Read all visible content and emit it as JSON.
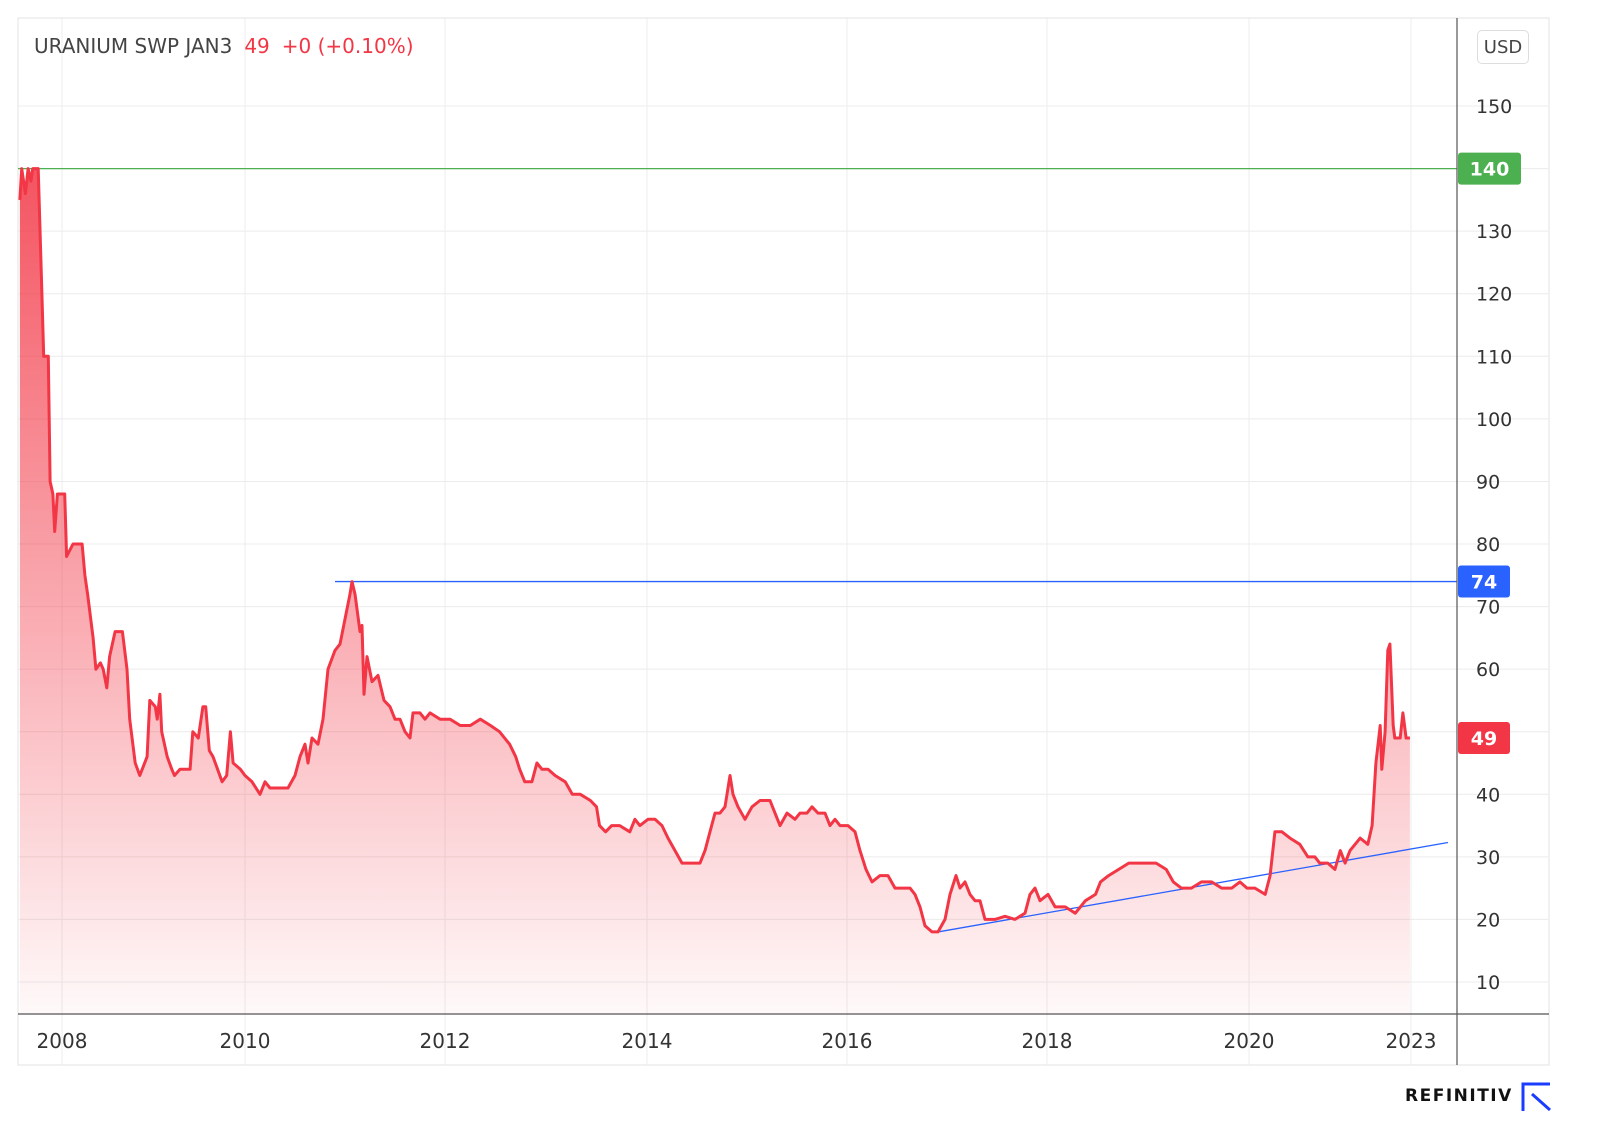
{
  "header": {
    "symbol": "URANIUM SWP JAN3",
    "last": "49",
    "change": "+0 (+0.10%)"
  },
  "currency_button": "USD",
  "brand": "REFINITIV",
  "colors": {
    "line": "#f23645",
    "green": "#4caf50",
    "blue": "#2962ff",
    "grid": "#ececec"
  },
  "chart_data": {
    "type": "area",
    "title": "URANIUM SWP JAN3",
    "ylabel": "USD",
    "ylim": [
      5,
      165
    ],
    "yticks": [
      10,
      20,
      30,
      40,
      50,
      60,
      70,
      80,
      90,
      100,
      110,
      120,
      130,
      140,
      150
    ],
    "ytick_labels": [
      "10",
      "20",
      "30",
      "40",
      "60",
      "70",
      "80",
      "90",
      "100",
      "110",
      "120",
      "130",
      "150"
    ],
    "ytick_label_values": [
      10,
      20,
      30,
      40,
      60,
      70,
      80,
      90,
      100,
      110,
      120,
      130,
      150
    ],
    "xticks": [
      2008,
      2010,
      2012,
      2014,
      2016,
      2018,
      2020,
      2023
    ],
    "xtick_labels": [
      "2008",
      "2010",
      "2012",
      "2014",
      "2016",
      "2018",
      "2020",
      "2023"
    ],
    "grid": true,
    "series": [
      {
        "name": "URANIUM SWP JAN3",
        "points": [
          [
            2007.54,
            135
          ],
          [
            2007.56,
            140
          ],
          [
            2007.6,
            136
          ],
          [
            2007.63,
            140
          ],
          [
            2007.66,
            138
          ],
          [
            2007.68,
            140
          ],
          [
            2007.74,
            140
          ],
          [
            2007.78,
            120
          ],
          [
            2007.8,
            110
          ],
          [
            2007.85,
            110
          ],
          [
            2007.87,
            90
          ],
          [
            2007.9,
            88
          ],
          [
            2007.92,
            82
          ],
          [
            2007.95,
            88
          ],
          [
            2008.03,
            88
          ],
          [
            2008.05,
            78
          ],
          [
            2008.12,
            80
          ],
          [
            2008.22,
            80
          ],
          [
            2008.25,
            75
          ],
          [
            2008.28,
            72
          ],
          [
            2008.34,
            65
          ],
          [
            2008.37,
            60
          ],
          [
            2008.42,
            61
          ],
          [
            2008.45,
            60
          ],
          [
            2008.49,
            57
          ],
          [
            2008.52,
            62
          ],
          [
            2008.58,
            66
          ],
          [
            2008.66,
            66
          ],
          [
            2008.71,
            60
          ],
          [
            2008.74,
            52
          ],
          [
            2008.8,
            45
          ],
          [
            2008.85,
            43
          ],
          [
            2008.93,
            46
          ],
          [
            2008.96,
            55
          ],
          [
            2009.02,
            54
          ],
          [
            2009.04,
            52
          ],
          [
            2009.07,
            56
          ],
          [
            2009.09,
            50
          ],
          [
            2009.15,
            46
          ],
          [
            2009.2,
            44
          ],
          [
            2009.23,
            43
          ],
          [
            2009.29,
            44
          ],
          [
            2009.4,
            44
          ],
          [
            2009.43,
            50
          ],
          [
            2009.49,
            49
          ],
          [
            2009.54,
            54
          ],
          [
            2009.57,
            54
          ],
          [
            2009.61,
            47
          ],
          [
            2009.65,
            46
          ],
          [
            2009.7,
            44
          ],
          [
            2009.75,
            42
          ],
          [
            2009.8,
            43
          ],
          [
            2009.84,
            50
          ],
          [
            2009.87,
            45
          ],
          [
            2009.95,
            44
          ],
          [
            2010.0,
            43
          ],
          [
            2010.07,
            42
          ],
          [
            2010.15,
            40
          ],
          [
            2010.2,
            42
          ],
          [
            2010.25,
            41
          ],
          [
            2010.35,
            41
          ],
          [
            2010.43,
            41
          ],
          [
            2010.5,
            43
          ],
          [
            2010.55,
            46
          ],
          [
            2010.6,
            48
          ],
          [
            2010.63,
            45
          ],
          [
            2010.67,
            49
          ],
          [
            2010.73,
            48
          ],
          [
            2010.78,
            52
          ],
          [
            2010.83,
            60
          ],
          [
            2010.9,
            63
          ],
          [
            2010.95,
            64
          ],
          [
            2011.0,
            68
          ],
          [
            2011.05,
            72
          ],
          [
            2011.07,
            74
          ],
          [
            2011.1,
            72
          ],
          [
            2011.15,
            66
          ],
          [
            2011.17,
            67
          ],
          [
            2011.19,
            56
          ],
          [
            2011.22,
            62
          ],
          [
            2011.27,
            58
          ],
          [
            2011.33,
            59
          ],
          [
            2011.39,
            55
          ],
          [
            2011.45,
            54
          ],
          [
            2011.5,
            52
          ],
          [
            2011.55,
            52
          ],
          [
            2011.6,
            50
          ],
          [
            2011.65,
            49
          ],
          [
            2011.68,
            53
          ],
          [
            2011.75,
            53
          ],
          [
            2011.8,
            52
          ],
          [
            2011.85,
            53
          ],
          [
            2011.95,
            52
          ],
          [
            2012.05,
            52
          ],
          [
            2012.15,
            51
          ],
          [
            2012.25,
            51
          ],
          [
            2012.35,
            52
          ],
          [
            2012.45,
            51
          ],
          [
            2012.54,
            50
          ],
          [
            2012.64,
            48
          ],
          [
            2012.7,
            46
          ],
          [
            2012.74,
            44
          ],
          [
            2012.79,
            42
          ],
          [
            2012.86,
            42
          ],
          [
            2012.91,
            45
          ],
          [
            2012.96,
            44
          ],
          [
            2013.02,
            44
          ],
          [
            2013.09,
            43
          ],
          [
            2013.19,
            42
          ],
          [
            2013.26,
            40
          ],
          [
            2013.34,
            40
          ],
          [
            2013.44,
            39
          ],
          [
            2013.5,
            38
          ],
          [
            2013.53,
            35
          ],
          [
            2013.59,
            34
          ],
          [
            2013.65,
            35
          ],
          [
            2013.73,
            35
          ],
          [
            2013.83,
            34
          ],
          [
            2013.88,
            36
          ],
          [
            2013.93,
            35
          ],
          [
            2014.01,
            36
          ],
          [
            2014.08,
            36
          ],
          [
            2014.15,
            35
          ],
          [
            2014.21,
            33
          ],
          [
            2014.28,
            31
          ],
          [
            2014.35,
            29
          ],
          [
            2014.43,
            29
          ],
          [
            2014.53,
            29
          ],
          [
            2014.58,
            31
          ],
          [
            2014.63,
            34
          ],
          [
            2014.68,
            37
          ],
          [
            2014.73,
            37
          ],
          [
            2014.78,
            38
          ],
          [
            2014.83,
            43
          ],
          [
            2014.86,
            40
          ],
          [
            2014.91,
            38
          ],
          [
            2014.98,
            36
          ],
          [
            2015.05,
            38
          ],
          [
            2015.13,
            39
          ],
          [
            2015.23,
            39
          ],
          [
            2015.28,
            37
          ],
          [
            2015.33,
            35
          ],
          [
            2015.4,
            37
          ],
          [
            2015.48,
            36
          ],
          [
            2015.53,
            37
          ],
          [
            2015.6,
            37
          ],
          [
            2015.65,
            38
          ],
          [
            2015.71,
            37
          ],
          [
            2015.78,
            37
          ],
          [
            2015.83,
            35
          ],
          [
            2015.88,
            36
          ],
          [
            2015.93,
            35
          ],
          [
            2016.01,
            35
          ],
          [
            2016.08,
            34
          ],
          [
            2016.13,
            31
          ],
          [
            2016.19,
            28
          ],
          [
            2016.25,
            26
          ],
          [
            2016.33,
            27
          ],
          [
            2016.41,
            27
          ],
          [
            2016.48,
            25
          ],
          [
            2016.56,
            25
          ],
          [
            2016.63,
            25
          ],
          [
            2016.68,
            24
          ],
          [
            2016.73,
            22
          ],
          [
            2016.78,
            19
          ],
          [
            2016.85,
            18
          ],
          [
            2016.91,
            18
          ],
          [
            2016.98,
            20
          ],
          [
            2017.03,
            24
          ],
          [
            2017.09,
            27
          ],
          [
            2017.13,
            25
          ],
          [
            2017.18,
            26
          ],
          [
            2017.23,
            24
          ],
          [
            2017.28,
            23
          ],
          [
            2017.33,
            23
          ],
          [
            2017.38,
            20
          ],
          [
            2017.48,
            20
          ],
          [
            2017.58,
            20.5
          ],
          [
            2017.68,
            20
          ],
          [
            2017.78,
            21
          ],
          [
            2017.83,
            24
          ],
          [
            2017.88,
            25
          ],
          [
            2017.93,
            23
          ],
          [
            2018.01,
            24
          ],
          [
            2018.08,
            22
          ],
          [
            2018.18,
            22
          ],
          [
            2018.28,
            21
          ],
          [
            2018.38,
            23
          ],
          [
            2018.48,
            24
          ],
          [
            2018.53,
            26
          ],
          [
            2018.61,
            27
          ],
          [
            2018.71,
            28
          ],
          [
            2018.81,
            29
          ],
          [
            2018.93,
            29
          ],
          [
            2019.08,
            29
          ],
          [
            2019.18,
            28
          ],
          [
            2019.25,
            26
          ],
          [
            2019.33,
            25
          ],
          [
            2019.43,
            25
          ],
          [
            2019.53,
            26
          ],
          [
            2019.63,
            26
          ],
          [
            2019.73,
            25
          ],
          [
            2019.83,
            25
          ],
          [
            2019.91,
            26
          ],
          [
            2019.98,
            25
          ],
          [
            2020.11,
            25
          ],
          [
            2020.3,
            24
          ],
          [
            2020.39,
            27
          ],
          [
            2020.48,
            34
          ],
          [
            2020.61,
            34
          ],
          [
            2020.76,
            33
          ],
          [
            2020.94,
            32
          ],
          [
            2021.09,
            30
          ],
          [
            2021.22,
            30
          ],
          [
            2021.31,
            29
          ],
          [
            2021.46,
            29
          ],
          [
            2021.59,
            28
          ],
          [
            2021.69,
            31
          ],
          [
            2021.78,
            29
          ],
          [
            2021.87,
            31
          ],
          [
            2022.06,
            33
          ],
          [
            2022.2,
            32
          ],
          [
            2022.28,
            35
          ],
          [
            2022.35,
            45
          ],
          [
            2022.43,
            51
          ],
          [
            2022.46,
            44
          ],
          [
            2022.52,
            50
          ],
          [
            2022.57,
            63
          ],
          [
            2022.61,
            64
          ],
          [
            2022.67,
            51
          ],
          [
            2022.7,
            49
          ],
          [
            2022.8,
            49
          ],
          [
            2022.85,
            53
          ],
          [
            2022.91,
            49
          ],
          [
            2022.98,
            49
          ]
        ]
      }
    ],
    "annotations": [
      {
        "type": "horizontal-line",
        "value": 140,
        "color": "green",
        "label": "140"
      },
      {
        "type": "horizontal-ray",
        "value": 74,
        "from_x": 2010.9,
        "color": "blue",
        "label": "74"
      },
      {
        "type": "trend-line",
        "from": [
          2016.91,
          18
        ],
        "to": [
          2023.69,
          32.3
        ],
        "color": "blue"
      },
      {
        "type": "last-price",
        "value": 49,
        "color": "red",
        "label": "49"
      }
    ]
  }
}
